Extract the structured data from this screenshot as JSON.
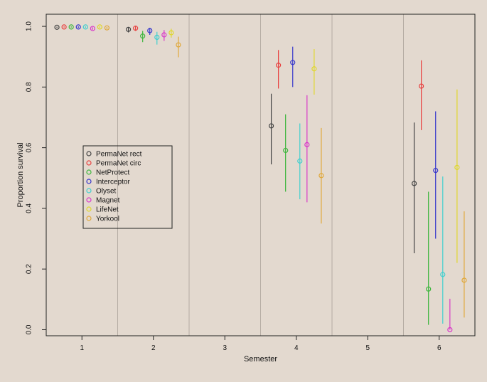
{
  "chart_data": {
    "type": "scatter",
    "title": "",
    "xlabel": "Semester",
    "ylabel": "Proportion survival",
    "x_ticks": [
      "1",
      "2",
      "3",
      "4",
      "5",
      "6"
    ],
    "y_ticks": [
      "0.0",
      "0.2",
      "0.4",
      "0.6",
      "0.8",
      "1.0"
    ],
    "xlim": [
      0.5,
      6.5
    ],
    "ylim": [
      -0.02,
      1.04
    ],
    "grid": "vertical separators between semesters",
    "legend_position": "left-middle",
    "series": [
      {
        "name": "PermaNet rect",
        "color": "#444444",
        "points": [
          {
            "x": 1,
            "y": 0.997,
            "low": 0.995,
            "high": 0.999
          },
          {
            "x": 2,
            "y": 0.99,
            "low": 0.98,
            "high": 0.998
          },
          {
            "x": 4,
            "y": 0.672,
            "low": 0.545,
            "high": 0.778
          },
          {
            "x": 6,
            "y": 0.482,
            "low": 0.252,
            "high": 0.683
          }
        ]
      },
      {
        "name": "PermaNet circ",
        "color": "#e8403f",
        "points": [
          {
            "x": 1,
            "y": 0.998,
            "low": 0.996,
            "high": 1.0
          },
          {
            "x": 2,
            "y": 0.994,
            "low": 0.985,
            "high": 1.0
          },
          {
            "x": 4,
            "y": 0.872,
            "low": 0.795,
            "high": 0.922
          },
          {
            "x": 6,
            "y": 0.803,
            "low": 0.658,
            "high": 0.888
          }
        ]
      },
      {
        "name": "NetProtect",
        "color": "#3cb53c",
        "points": [
          {
            "x": 1,
            "y": 0.998,
            "low": 0.996,
            "high": 1.0
          },
          {
            "x": 2,
            "y": 0.968,
            "low": 0.948,
            "high": 0.985
          },
          {
            "x": 4,
            "y": 0.591,
            "low": 0.455,
            "high": 0.71
          },
          {
            "x": 6,
            "y": 0.134,
            "low": 0.016,
            "high": 0.455
          }
        ]
      },
      {
        "name": "Interceptor",
        "color": "#3535cc",
        "points": [
          {
            "x": 1,
            "y": 0.998,
            "low": 0.995,
            "high": 1.0
          },
          {
            "x": 2,
            "y": 0.986,
            "low": 0.972,
            "high": 0.995
          },
          {
            "x": 4,
            "y": 0.881,
            "low": 0.8,
            "high": 0.933
          },
          {
            "x": 6,
            "y": 0.525,
            "low": 0.3,
            "high": 0.72
          }
        ]
      },
      {
        "name": "Olyset",
        "color": "#3fcfcf",
        "points": [
          {
            "x": 1,
            "y": 0.998,
            "low": 0.995,
            "high": 1.0
          },
          {
            "x": 2,
            "y": 0.964,
            "low": 0.94,
            "high": 0.982
          },
          {
            "x": 4,
            "y": 0.556,
            "low": 0.43,
            "high": 0.68
          },
          {
            "x": 6,
            "y": 0.182,
            "low": 0.02,
            "high": 0.505
          }
        ]
      },
      {
        "name": "Magnet",
        "color": "#d937c9",
        "points": [
          {
            "x": 1,
            "y": 0.993,
            "low": 0.989,
            "high": 0.997
          },
          {
            "x": 2,
            "y": 0.972,
            "low": 0.952,
            "high": 0.988
          },
          {
            "x": 4,
            "y": 0.61,
            "low": 0.42,
            "high": 0.773
          },
          {
            "x": 6,
            "y": 0.0,
            "low": 0.0,
            "high": 0.102
          }
        ]
      },
      {
        "name": "LifeNet",
        "color": "#e0d72a",
        "points": [
          {
            "x": 1,
            "y": 0.998,
            "low": 0.995,
            "high": 1.0
          },
          {
            "x": 2,
            "y": 0.979,
            "low": 0.963,
            "high": 0.992
          },
          {
            "x": 4,
            "y": 0.86,
            "low": 0.775,
            "high": 0.925
          },
          {
            "x": 6,
            "y": 0.535,
            "low": 0.22,
            "high": 0.792
          }
        ]
      },
      {
        "name": "Yorkool",
        "color": "#e0a83a",
        "points": [
          {
            "x": 1,
            "y": 0.995,
            "low": 0.991,
            "high": 0.998
          },
          {
            "x": 2,
            "y": 0.939,
            "low": 0.898,
            "high": 0.966
          },
          {
            "x": 4,
            "y": 0.508,
            "low": 0.35,
            "high": 0.665
          },
          {
            "x": 6,
            "y": 0.163,
            "low": 0.04,
            "high": 0.39
          }
        ]
      }
    ]
  }
}
